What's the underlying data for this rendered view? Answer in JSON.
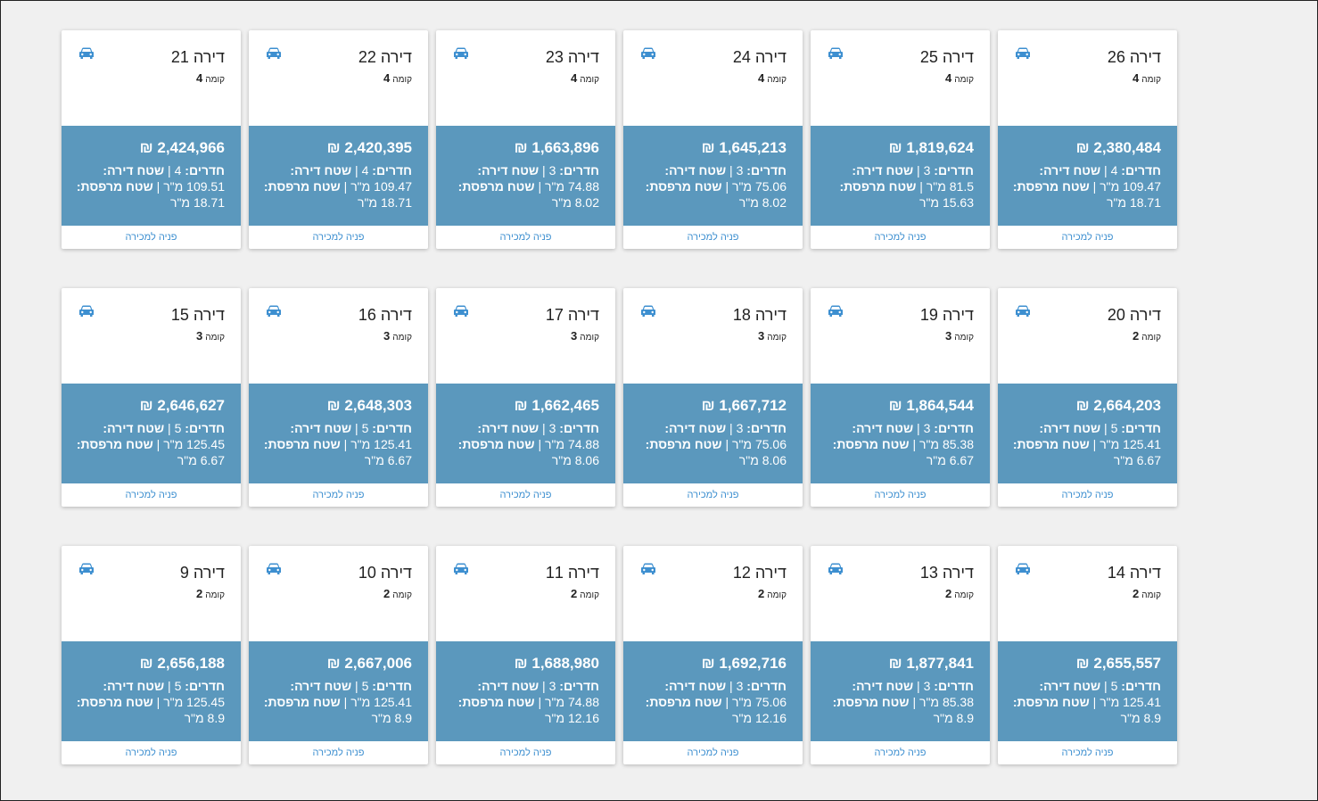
{
  "labels": {
    "apartment": "דירה",
    "floor": "קומה",
    "rooms": "חדרים:",
    "area": "שטח דירה:",
    "balcony": "שטח מרפסת:",
    "unit": "מ\"ר",
    "currency": "₪",
    "contact": "פניה למכירה",
    "car_icon": "car-icon"
  },
  "colors": {
    "card_accent": "#5b98bd",
    "link": "#3d8fd0",
    "icon": "#3d8fd0"
  },
  "apartments": [
    {
      "number": "26",
      "floor": "4",
      "price": "2,380,484",
      "rooms": "4",
      "area": "109.47",
      "balcony": "18.71"
    },
    {
      "number": "25",
      "floor": "4",
      "price": "1,819,624",
      "rooms": "3",
      "area": "81.5",
      "balcony": "15.63"
    },
    {
      "number": "24",
      "floor": "4",
      "price": "1,645,213",
      "rooms": "3",
      "area": "75.06",
      "balcony": "8.02"
    },
    {
      "number": "23",
      "floor": "4",
      "price": "1,663,896",
      "rooms": "3",
      "area": "74.88",
      "balcony": "8.02"
    },
    {
      "number": "22",
      "floor": "4",
      "price": "2,420,395",
      "rooms": "4",
      "area": "109.47",
      "balcony": "18.71"
    },
    {
      "number": "21",
      "floor": "4",
      "price": "2,424,966",
      "rooms": "4",
      "area": "109.51",
      "balcony": "18.71"
    },
    {
      "number": "20",
      "floor": "2",
      "price": "2,664,203",
      "rooms": "5",
      "area": "125.41",
      "balcony": "6.67"
    },
    {
      "number": "19",
      "floor": "3",
      "price": "1,864,544",
      "rooms": "3",
      "area": "85.38",
      "balcony": "6.67"
    },
    {
      "number": "18",
      "floor": "3",
      "price": "1,667,712",
      "rooms": "3",
      "area": "75.06",
      "balcony": "8.06"
    },
    {
      "number": "17",
      "floor": "3",
      "price": "1,662,465",
      "rooms": "3",
      "area": "74.88",
      "balcony": "8.06"
    },
    {
      "number": "16",
      "floor": "3",
      "price": "2,648,303",
      "rooms": "5",
      "area": "125.41",
      "balcony": "6.67"
    },
    {
      "number": "15",
      "floor": "3",
      "price": "2,646,627",
      "rooms": "5",
      "area": "125.45",
      "balcony": "6.67"
    },
    {
      "number": "14",
      "floor": "2",
      "price": "2,655,557",
      "rooms": "5",
      "area": "125.41",
      "balcony": "8.9"
    },
    {
      "number": "13",
      "floor": "2",
      "price": "1,877,841",
      "rooms": "3",
      "area": "85.38",
      "balcony": "8.9"
    },
    {
      "number": "12",
      "floor": "2",
      "price": "1,692,716",
      "rooms": "3",
      "area": "75.06",
      "balcony": "12.16"
    },
    {
      "number": "11",
      "floor": "2",
      "price": "1,688,980",
      "rooms": "3",
      "area": "74.88",
      "balcony": "12.16"
    },
    {
      "number": "10",
      "floor": "2",
      "price": "2,667,006",
      "rooms": "5",
      "area": "125.41",
      "balcony": "8.9"
    },
    {
      "number": "9",
      "floor": "2",
      "price": "2,656,188",
      "rooms": "5",
      "area": "125.45",
      "balcony": "8.9"
    }
  ]
}
